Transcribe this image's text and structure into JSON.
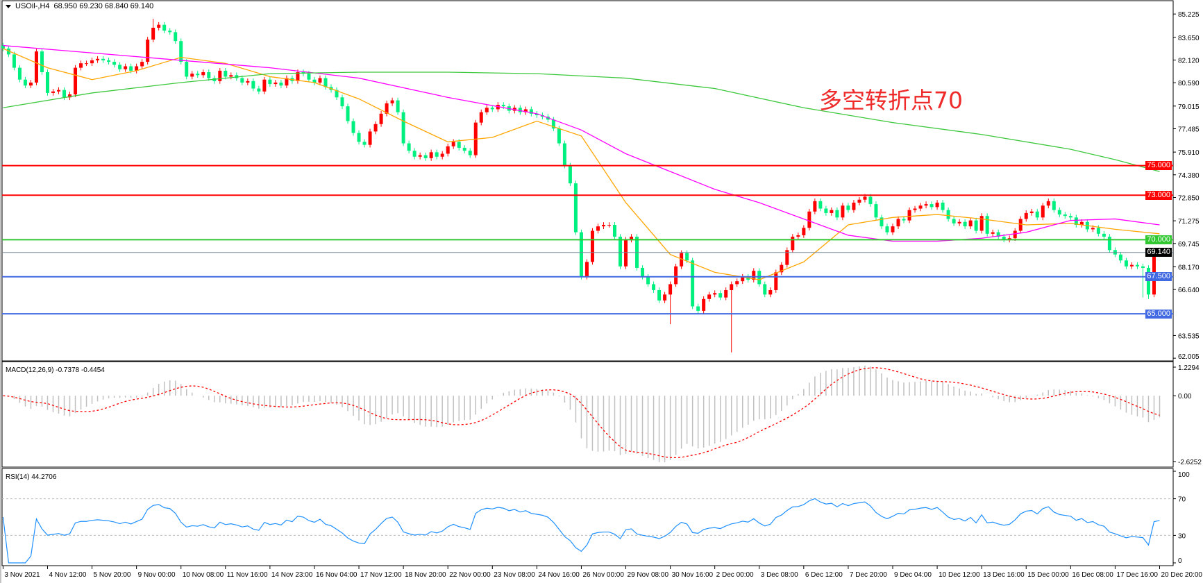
{
  "header": {
    "symbol": "USOil-,H4",
    "ohlc": "68.950 69.230 68.840 69.140"
  },
  "annotation": "多空转折点70",
  "colors": {
    "up": "#ff0000",
    "down": "#00f07f",
    "ma_fast": "#ffa500",
    "ma_mid": "#ff00ff",
    "ma_slow": "#3cc83c",
    "macd_hist": "#c0c0c0",
    "macd_signal": "#ff0000",
    "rsi": "#1e90ff"
  },
  "chart_data": [
    {
      "type": "candlestick",
      "title": "USOil-,H4",
      "price_axis": {
        "range": [
          61.87,
          86.03
        ],
        "ticks": [
          "85.225",
          "83.650",
          "82.120",
          "80.590",
          "79.015",
          "77.485",
          "75.910",
          "74.380",
          "72.850",
          "71.275",
          "69.745",
          "68.170",
          "66.640",
          "63.535",
          "62.005"
        ]
      },
      "time_axis": [
        "3 Nov 2021",
        "4 Nov 12:00",
        "5 Nov 20:00",
        "9 Nov 00:00",
        "10 Nov 08:00",
        "11 Nov 16:00",
        "14 Nov 23:00",
        "16 Nov 04:00",
        "17 Nov 12:00",
        "18 Nov 20:00",
        "22 Nov 00:00",
        "23 Nov 08:00",
        "24 Nov 16:00",
        "26 Nov 00:00",
        "29 Nov 08:00",
        "30 Nov 16:00",
        "2 Dec 00:00",
        "3 Dec 08:00",
        "6 Dec 12:00",
        "7 Dec 20:00",
        "9 Dec 04:00",
        "10 Dec 12:00",
        "13 Dec 16:00",
        "15 Dec 00:00",
        "16 Dec 08:00",
        "17 Dec 16:00",
        "20 Dec 20:00"
      ],
      "bars_per_time_label": 8,
      "first_open": 83.1,
      "closes": [
        82.9,
        82.5,
        81.6,
        80.8,
        80.4,
        80.6,
        82.7,
        81.3,
        79.9,
        80.0,
        80.1,
        79.6,
        79.8,
        81.6,
        81.9,
        81.9,
        82.1,
        82.2,
        82.1,
        82.0,
        81.8,
        81.5,
        81.7,
        81.4,
        81.7,
        82.0,
        83.5,
        84.3,
        84.5,
        84.1,
        84.0,
        83.4,
        82.0,
        81.0,
        81.2,
        81.1,
        81.3,
        80.9,
        80.7,
        81.4,
        81.0,
        81.1,
        80.9,
        80.6,
        80.7,
        80.2,
        80.0,
        80.8,
        80.5,
        80.6,
        80.4,
        80.9,
        80.7,
        81.3,
        81.2,
        80.8,
        80.6,
        80.9,
        80.3,
        80.1,
        79.6,
        79.0,
        78.0,
        77.2,
        76.6,
        76.4,
        77.3,
        77.8,
        78.5,
        79.2,
        79.4,
        78.6,
        76.5,
        76.0,
        75.6,
        75.7,
        75.5,
        75.9,
        75.6,
        75.8,
        76.3,
        76.6,
        76.2,
        76.0,
        75.7,
        77.9,
        78.6,
        78.9,
        78.8,
        79.1,
        79.0,
        78.7,
        78.9,
        78.6,
        78.8,
        78.5,
        78.4,
        78.3,
        78.1,
        77.5,
        76.5,
        75.0,
        73.8,
        70.5,
        67.5,
        68.5,
        70.6,
        70.9,
        71.0,
        71.0,
        70.2,
        68.2,
        70.0,
        70.2,
        68.1,
        67.5,
        67.0,
        66.6,
        65.9,
        66.3,
        67.0,
        68.2,
        69.1,
        68.6,
        65.5,
        65.2,
        66.0,
        66.3,
        66.4,
        66.1,
        66.6,
        67.0,
        67.2,
        67.5,
        67.3,
        67.9,
        67.0,
        66.3,
        66.6,
        67.8,
        68.3,
        69.3,
        70.2,
        70.3,
        70.8,
        71.9,
        72.6,
        72.1,
        71.8,
        72.0,
        71.5,
        72.3,
        72.0,
        72.5,
        72.7,
        72.9,
        72.4,
        71.5,
        70.9,
        70.5,
        70.9,
        71.4,
        71.3,
        72.0,
        72.1,
        72.3,
        72.4,
        72.2,
        72.5,
        72.0,
        71.4,
        71.1,
        71.2,
        70.9,
        71.3,
        70.6,
        71.6,
        70.4,
        70.5,
        70.2,
        70.0,
        70.1,
        70.6,
        71.4,
        71.8,
        71.9,
        71.5,
        72.3,
        72.6,
        72.0,
        71.7,
        71.6,
        71.5,
        71.0,
        71.2,
        70.7,
        70.8,
        70.4,
        70.2,
        69.3,
        69.0,
        68.6,
        68.2,
        68.3,
        68.2,
        68.1,
        66.3,
        68.95,
        69.14
      ],
      "wick_extremes": [
        {
          "bar": 120,
          "low": 64.3
        },
        {
          "bar": 131,
          "low": 62.4
        },
        {
          "bar": 205,
          "low": 66.1
        },
        {
          "bar": 206,
          "low": 66.0
        },
        {
          "bar": 208,
          "high": 69.23,
          "low": 68.84
        },
        {
          "bar": 27,
          "high": 84.9
        }
      ],
      "moving_averages": [
        {
          "color_key": "ma_fast",
          "points": [
            [
              0,
              82.9
            ],
            [
              8,
              81.6
            ],
            [
              16,
              80.8
            ],
            [
              24,
              81.4
            ],
            [
              32,
              82.3
            ],
            [
              40,
              81.9
            ],
            [
              48,
              81.0
            ],
            [
              56,
              80.6
            ],
            [
              64,
              79.5
            ],
            [
              72,
              78.0
            ],
            [
              80,
              76.6
            ],
            [
              88,
              76.9
            ],
            [
              96,
              78.0
            ],
            [
              104,
              77.0
            ],
            [
              112,
              72.5
            ],
            [
              120,
              69.0
            ],
            [
              128,
              67.8
            ],
            [
              136,
              67.3
            ],
            [
              144,
              68.5
            ],
            [
              152,
              71.0
            ],
            [
              160,
              71.5
            ],
            [
              168,
              71.7
            ],
            [
              176,
              71.4
            ],
            [
              184,
              71.0
            ],
            [
              192,
              71.1
            ],
            [
              200,
              70.7
            ],
            [
              208,
              70.4
            ]
          ]
        },
        {
          "color_key": "ma_mid",
          "points": [
            [
              0,
              83.1
            ],
            [
              16,
              82.6
            ],
            [
              32,
              82.1
            ],
            [
              48,
              81.6
            ],
            [
              64,
              80.9
            ],
            [
              80,
              79.6
            ],
            [
              96,
              78.5
            ],
            [
              104,
              77.4
            ],
            [
              112,
              75.8
            ],
            [
              120,
              74.6
            ],
            [
              128,
              73.4
            ],
            [
              136,
              72.5
            ],
            [
              144,
              71.4
            ],
            [
              152,
              70.3
            ],
            [
              160,
              69.9
            ],
            [
              168,
              69.9
            ],
            [
              176,
              70.1
            ],
            [
              184,
              70.5
            ],
            [
              192,
              71.3
            ],
            [
              200,
              71.4
            ],
            [
              208,
              71.0
            ]
          ]
        },
        {
          "color_key": "ma_slow",
          "points": [
            [
              0,
              78.9
            ],
            [
              16,
              79.9
            ],
            [
              32,
              80.6
            ],
            [
              48,
              81.2
            ],
            [
              64,
              81.3
            ],
            [
              80,
              81.3
            ],
            [
              96,
              81.2
            ],
            [
              112,
              80.9
            ],
            [
              128,
              80.2
            ],
            [
              144,
              78.9
            ],
            [
              160,
              77.9
            ],
            [
              176,
              77.1
            ],
            [
              192,
              76.1
            ],
            [
              200,
              75.4
            ],
            [
              208,
              74.6
            ]
          ]
        }
      ],
      "horizontal_lines": [
        {
          "price": 75.0,
          "label": "75.000",
          "color": "#ff0000"
        },
        {
          "price": 73.0,
          "label": "73.000",
          "color": "#ff0000"
        },
        {
          "price": 70.0,
          "label": "70.000",
          "color": "#32c832"
        },
        {
          "price": 67.5,
          "label": "67.500",
          "color": "#4169e1"
        },
        {
          "price": 65.0,
          "label": "65.000",
          "color": "#4169e1"
        },
        {
          "price": 69.14,
          "label": "69.140",
          "color": "#000000",
          "line_color": "#778899"
        }
      ]
    },
    {
      "type": "bar",
      "title": "MACD(12,26,9) -0.7378 -0.4454",
      "range": [
        -2.6252,
        1.2294
      ],
      "ticks": [
        "1.2294",
        "0.00",
        "-2.6252"
      ],
      "parameters": [
        12,
        26,
        9
      ]
    },
    {
      "type": "line",
      "title": "RSI(14) 44.2706",
      "range": [
        0,
        100
      ],
      "ticks": [
        "100",
        "70",
        "30",
        "0"
      ],
      "levels": [
        70,
        30
      ],
      "period": 14
    }
  ]
}
